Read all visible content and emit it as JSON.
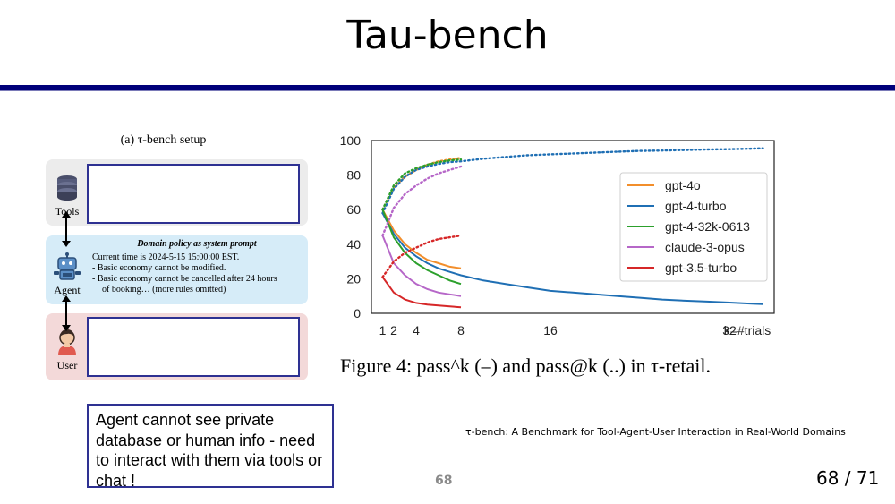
{
  "slide": {
    "title": "Tau-bench",
    "page_center": "68",
    "page_counter": "68 / 71",
    "reference": "τ-bench: A Benchmark for Tool-Agent-User Interaction in Real-World Domains",
    "note": "Agent cannot see private database or human info - need to interact with them via tools or chat !"
  },
  "setup": {
    "title": "(a) τ-bench setup",
    "tools_label": "Tools",
    "agent_label": "Agent",
    "user_label": "User",
    "policy_heading": "Domain policy as system prompt",
    "policy_lines": [
      "Current time is 2024-5-15 15:00:00 EST.",
      "-   Basic economy cannot be modified.",
      "-   Basic economy cannot be cancelled after 24 hours",
      "of booking… (more rules omitted)"
    ]
  },
  "figure_caption": "Figure 4: pass^k (–) and pass@k (..) in τ-retail.",
  "chart_data": {
    "type": "line",
    "xlabel": "k=#trials",
    "x_ticks": [
      "1",
      "2",
      "4",
      "8",
      "16",
      "32"
    ],
    "x_tick_values": [
      1,
      2,
      4,
      8,
      16,
      32
    ],
    "y_ticks": [
      "0",
      "20",
      "40",
      "60",
      "80",
      "100"
    ],
    "xlim": [
      0,
      36
    ],
    "ylim": [
      0,
      100
    ],
    "grid": false,
    "legend_position": "upper-right",
    "series": [
      {
        "name": "gpt-4o",
        "color": "#f28e2b",
        "pass_hat_k": {
          "x": [
            1,
            2,
            3,
            4,
            5,
            6,
            7,
            8
          ],
          "y": [
            60,
            48,
            40,
            35,
            31,
            29,
            27,
            26
          ]
        },
        "pass_at_k": {
          "x": [
            1,
            2,
            3,
            4,
            5,
            6,
            7,
            8
          ],
          "y": [
            60,
            73,
            79,
            83,
            86,
            88,
            89,
            90
          ]
        }
      },
      {
        "name": "gpt-4-turbo",
        "color": "#1f6fb4",
        "pass_hat_k": {
          "x": [
            1,
            2,
            3,
            4,
            5,
            6,
            7,
            8,
            10,
            12,
            14,
            16,
            18,
            20,
            22,
            24,
            26,
            28,
            30,
            32,
            34,
            35
          ],
          "y": [
            58,
            46,
            38,
            33,
            29,
            26,
            24,
            22,
            19,
            17,
            15,
            13,
            12,
            11,
            10,
            9,
            8,
            7.3,
            6.8,
            6.2,
            5.6,
            5.3
          ]
        },
        "pass_at_k": {
          "x": [
            1,
            2,
            3,
            4,
            5,
            6,
            7,
            8,
            10,
            12,
            14,
            16,
            18,
            20,
            22,
            24,
            26,
            28,
            30,
            32,
            34,
            35
          ],
          "y": [
            58,
            72,
            79,
            83,
            85,
            86.5,
            87.5,
            88,
            89.5,
            90.5,
            91.5,
            92,
            92.5,
            93,
            93.5,
            94,
            94.2,
            94.5,
            94.8,
            95,
            95.3,
            95.5
          ]
        }
      },
      {
        "name": "gpt-4-32k-0613",
        "color": "#2ca02c",
        "pass_hat_k": {
          "x": [
            1,
            2,
            3,
            4,
            5,
            6,
            7,
            8
          ],
          "y": [
            60,
            44,
            35,
            29,
            25,
            22,
            19,
            17
          ]
        },
        "pass_at_k": {
          "x": [
            1,
            2,
            3,
            4,
            5,
            6,
            7,
            8
          ],
          "y": [
            60,
            74,
            81,
            84,
            86,
            87.5,
            88.5,
            89
          ]
        }
      },
      {
        "name": "claude-3-opus",
        "color": "#b667c8",
        "pass_hat_k": {
          "x": [
            1,
            2,
            3,
            4,
            5,
            6,
            7,
            8
          ],
          "y": [
            45,
            29,
            22,
            17,
            14,
            12,
            11,
            10
          ]
        },
        "pass_at_k": {
          "x": [
            1,
            2,
            3,
            4,
            5,
            6,
            7,
            8
          ],
          "y": [
            45,
            61,
            69,
            74,
            78,
            81,
            83,
            85
          ]
        }
      },
      {
        "name": "gpt-3.5-turbo",
        "color": "#d62728",
        "pass_hat_k": {
          "x": [
            1,
            2,
            3,
            4,
            5,
            6,
            7,
            8
          ],
          "y": [
            21,
            12,
            8,
            6,
            5,
            4.5,
            4,
            3.5
          ]
        },
        "pass_at_k": {
          "x": [
            1,
            2,
            3,
            4,
            5,
            6,
            7,
            8
          ],
          "y": [
            21,
            30,
            35,
            38,
            41,
            43,
            44,
            45
          ]
        }
      }
    ]
  }
}
